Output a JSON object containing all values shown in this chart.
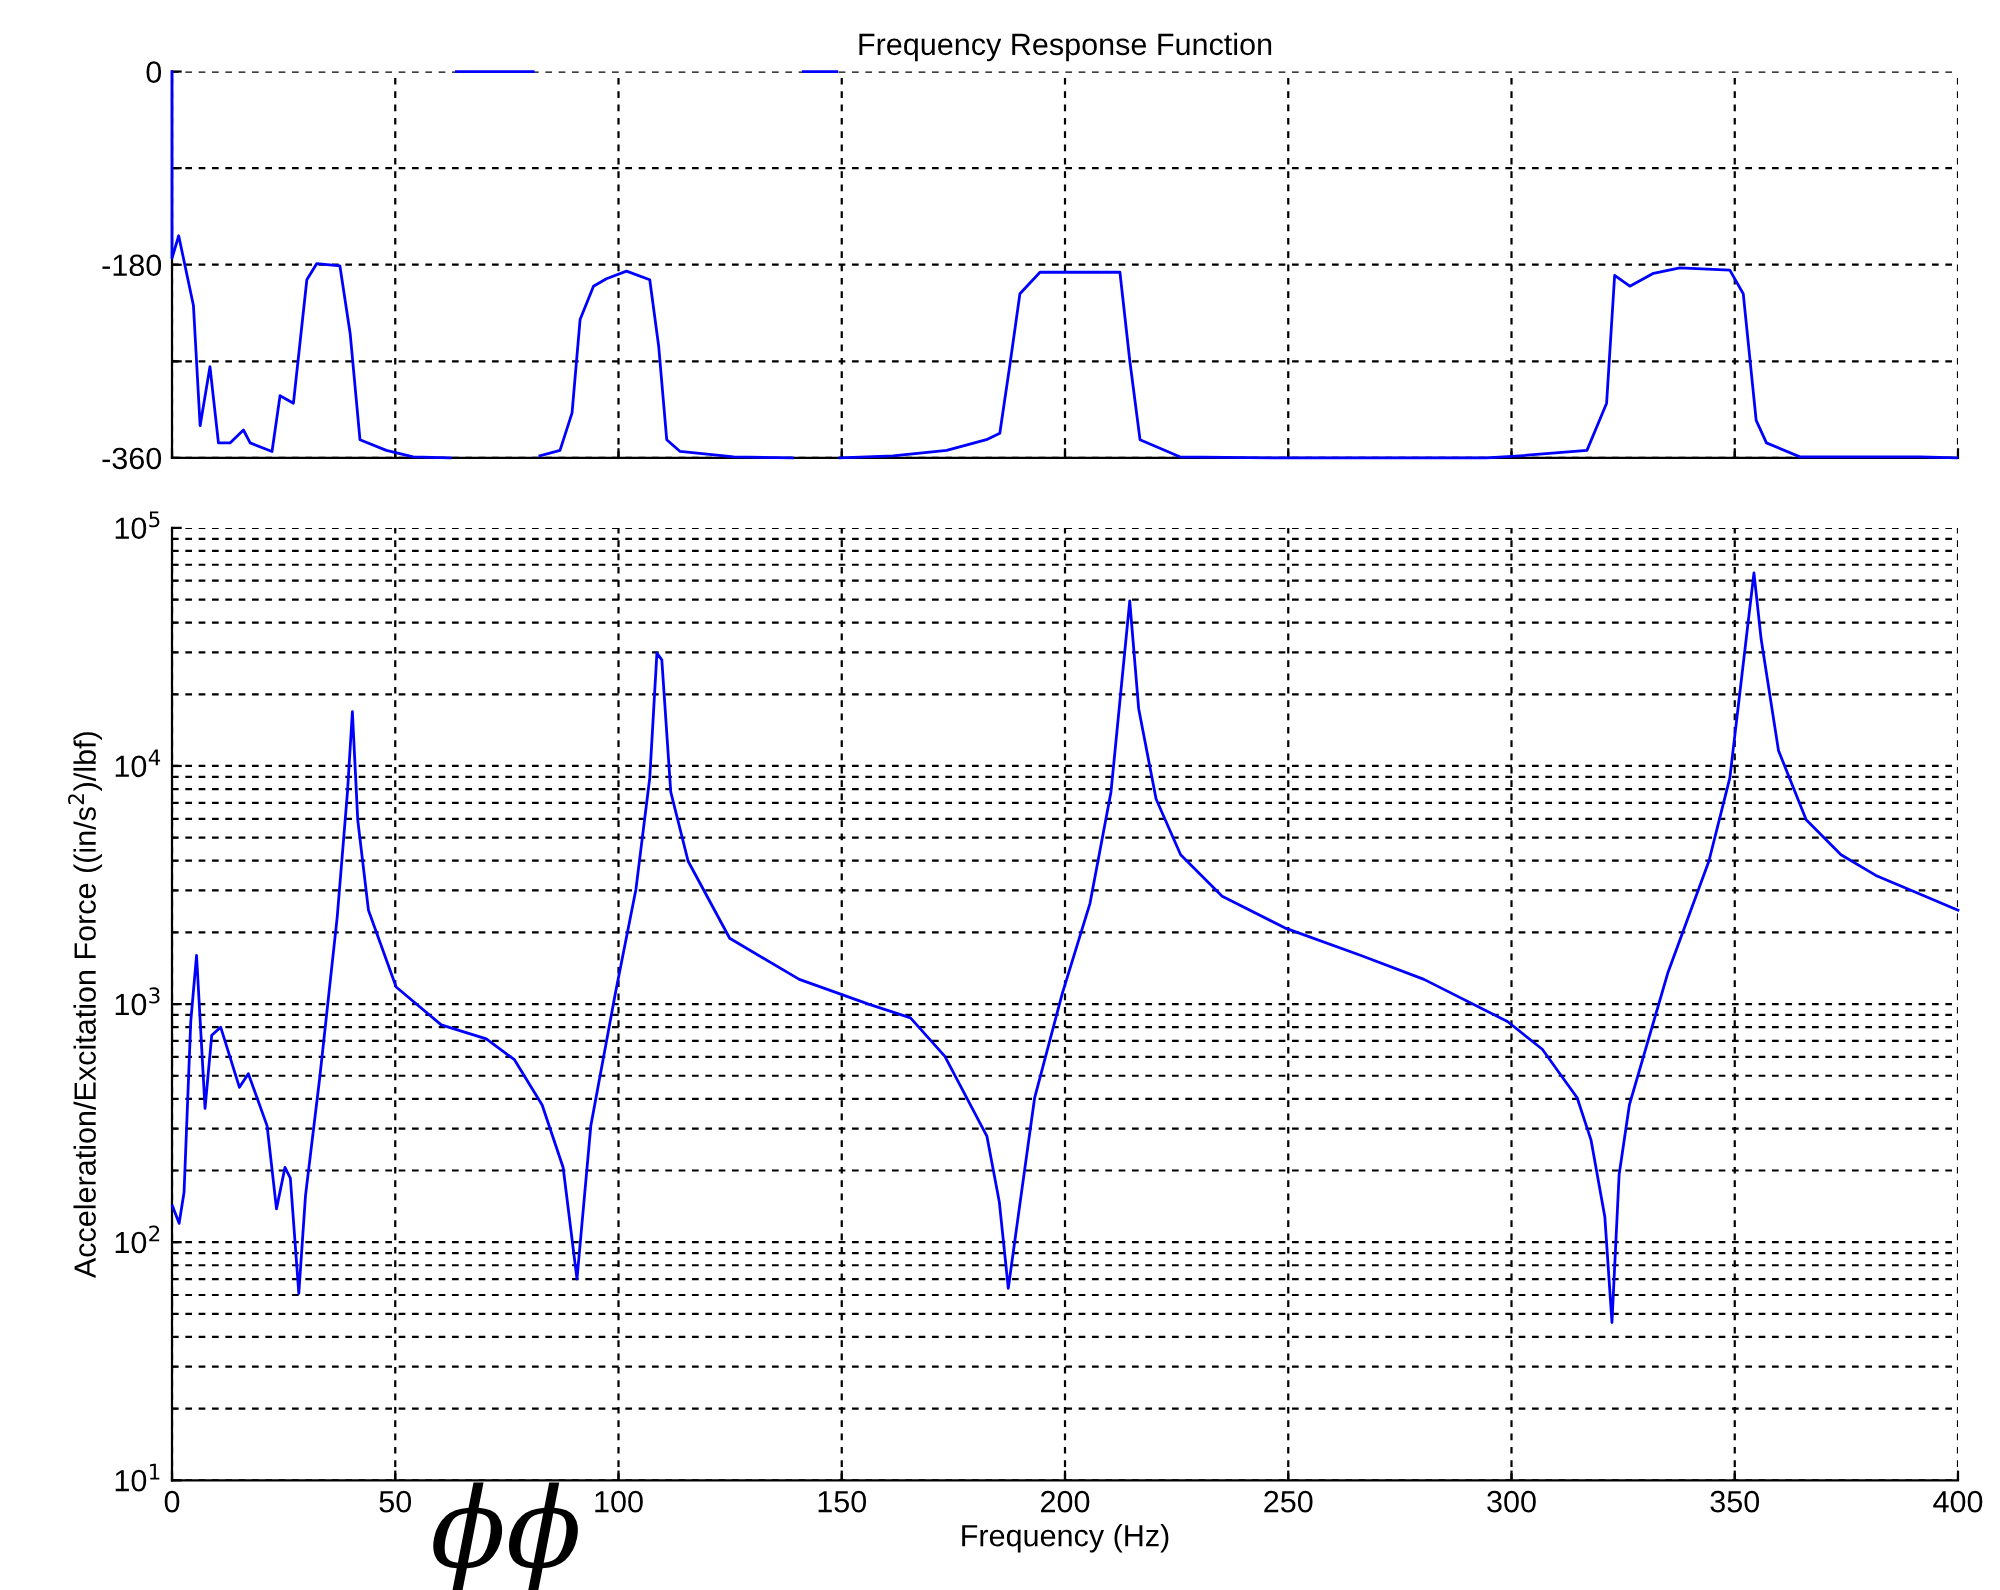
{
  "chart_data": [
    {
      "type": "line",
      "title": "Frequency Response Function",
      "tick_labels": "y",
      "grid": true,
      "xlim": [
        0,
        400
      ],
      "xticks": [
        0,
        50,
        100,
        150,
        200,
        250,
        300,
        350,
        400
      ],
      "ylim": [
        -360,
        0
      ],
      "yticks": [
        -360,
        {
          "value": -270,
          "label": null
        },
        -180,
        {
          "value": -90,
          "label": null
        },
        0
      ],
      "series": [
        {
          "color": "#0000ff",
          "x": [
            0,
            0,
            1.5,
            4.8,
            6.3,
            8.5,
            10.4,
            13,
            16,
            17.5,
            22.4,
            24.2,
            27.2,
            30.2,
            32.4,
            37.6,
            39.9,
            42.1,
            48,
            54,
            62.3,
            63,
            63.7,
            80.9,
            81.6,
            82.4,
            86.9,
            89.6,
            91.4,
            94.4,
            97.3,
            101.8,
            107,
            109,
            110.8,
            113.8,
            125.8,
            139,
            140.2,
            141.4,
            148.9,
            149.2,
            149.6,
            161.5,
            173.5,
            182.4,
            185.4,
            187.7,
            189.9,
            194.4,
            212.3,
            214.5,
            216.8,
            225.7,
            246.6,
            294.3,
            301.9,
            316.9,
            321.3,
            323.1,
            326.5,
            331.8,
            337.7,
            348.9,
            351.9,
            354.8,
            357.1,
            364.6,
            391.5,
            399.7
          ],
          "values": [
            0,
            -174,
            -153,
            -218,
            -330,
            -275,
            -346,
            -346,
            -334,
            -346,
            -354,
            -302,
            -309,
            -194,
            -179,
            -181,
            -244,
            -343,
            -353,
            -359,
            -360,
            null,
            0,
            0,
            null,
            -358,
            -353,
            -318,
            -231,
            -200,
            -193,
            -186,
            -194,
            -256,
            -343,
            -354,
            -359,
            -360,
            null,
            0,
            0,
            null,
            -360,
            -358,
            -353,
            -343,
            -337,
            -272,
            -207,
            -187,
            -187,
            -269,
            -343,
            -359,
            -360,
            -360,
            -358,
            -353,
            -309,
            -190,
            -200,
            -188,
            -183,
            -185,
            -207,
            -325,
            -346,
            -359,
            -359,
            -360
          ]
        }
      ]
    },
    {
      "type": "line",
      "xlabel": "Frequency (Hz)",
      "ylabel": "Acceleration/Excitation Force ((in/s$^{2}$)/lbf)",
      "log": "y",
      "grid": true,
      "xlim": [
        0,
        400
      ],
      "xticks": [
        0,
        50,
        100,
        150,
        200,
        250,
        300,
        350,
        400
      ],
      "ylim": [
        10,
        100000
      ],
      "yticks": [
        {
          "value": 10,
          "label": "10$^{1}$"
        },
        {
          "value": 100,
          "label": "10$^{2}$"
        },
        {
          "value": 1000,
          "label": "10$^{3}$"
        },
        {
          "value": 10000,
          "label": "10$^{4}$"
        },
        {
          "value": 100000,
          "label": "10$^{5}$"
        }
      ],
      "annotations": [
        "ϕϕ"
      ],
      "series": [
        {
          "color": "#0000ff",
          "x": [
            0.1,
            1.6,
            2.7,
            4.2,
            5.5,
            7.4,
            8.9,
            10.9,
            15.1,
            17.1,
            21.3,
            23.4,
            25.3,
            26.5,
            28.4,
            29.9,
            33.1,
            37,
            39.3,
            40.4,
            41.6,
            44,
            50.2,
            60.3,
            70.4,
            76.7,
            82.9,
            87.6,
            90.7,
            93.8,
            99.3,
            103.9,
            107,
            108.6,
            109.7,
            111.7,
            115.6,
            124.9,
            140.5,
            156,
            165.4,
            173.1,
            182.5,
            185.3,
            187.3,
            189.3,
            193.2,
            199.4,
            205.6,
            210.3,
            214.5,
            216.5,
            220.4,
            225.9,
            235.2,
            249.2,
            266.3,
            280.4,
            299.1,
            306.9,
            314.7,
            317.8,
            320.9,
            322.5,
            324.1,
            326.4,
            335,
            344.2,
            348.9,
            354.3,
            355.9,
            359.8,
            366,
            373.8,
            381.6,
            390.9,
            400
          ],
          "values": [
            142,
            120,
            162,
            845,
            1600,
            365,
            740,
            800,
            447,
            510,
            308,
            138,
            206,
            186,
            61,
            157,
            493,
            2320,
            7780,
            16900,
            5940,
            2480,
            1180,
            818,
            714,
            584,
            377,
            206,
            70,
            308,
            1110,
            3030,
            8910,
            29800,
            27900,
            7780,
            3980,
            1890,
            1270,
            1000,
            875,
            603,
            279,
            147,
            64,
            120,
            404,
            1110,
            2650,
            7780,
            49400,
            17400,
            7270,
            4240,
            2840,
            2090,
            1600,
            1270,
            845,
            646,
            404,
            269,
            128,
            46,
            192,
            377,
            1350,
            3980,
            8910,
            64700,
            34200,
            11600,
            5940,
            4240,
            3470,
            2930,
            2480
          ]
        }
      ]
    }
  ]
}
